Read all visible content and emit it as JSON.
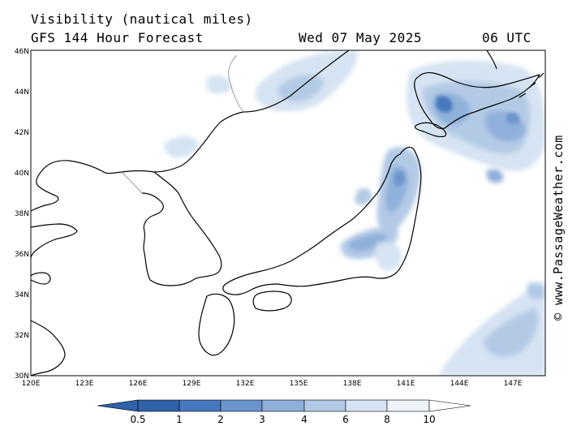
{
  "header": {
    "title": "Visibility (nautical miles)",
    "subtitle": "GFS 144 Hour Forecast",
    "date": "Wed 07 May 2025",
    "time": "06 UTC"
  },
  "credit": "© www.PassageWeather.com",
  "map": {
    "lat_labels": [
      "46N",
      "44N",
      "42N",
      "40N",
      "38N",
      "36N",
      "34N",
      "32N",
      "30N"
    ],
    "lon_labels": [
      "120E",
      "123E",
      "126E",
      "129E",
      "132E",
      "135E",
      "138E",
      "141E",
      "144E",
      "147E"
    ]
  },
  "legend": {
    "labels": [
      "0.5",
      "1",
      "2",
      "3",
      "4",
      "6",
      "8",
      "10"
    ],
    "colors": [
      "#2f62a8",
      "#4678bd",
      "#6a94cc",
      "#8fb0da",
      "#b3cae6",
      "#d6e3f2",
      "#eef3fa",
      "#ffffff"
    ]
  },
  "colors": {
    "fog_dark": "#2f62a8",
    "fog_mid": "#8fb0da",
    "fog_light": "#d6e3f2"
  }
}
